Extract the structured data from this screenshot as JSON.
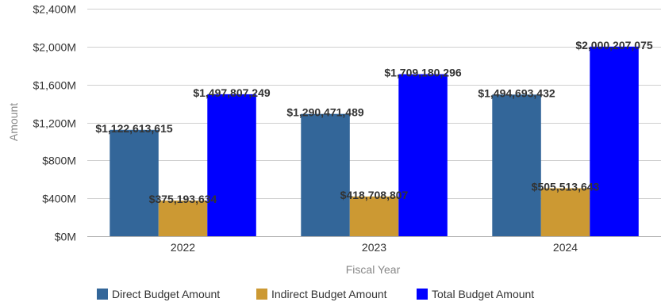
{
  "chart_data": {
    "type": "bar",
    "xlabel": "Fiscal Year",
    "ylabel": "Amount",
    "categories": [
      "2022",
      "2023",
      "2024"
    ],
    "ylim": [
      0,
      2400000000
    ],
    "yticks": [
      "$0M",
      "$400M",
      "$800M",
      "$1,200M",
      "$1,600M",
      "$2,000M",
      "$2,400M"
    ],
    "grid": true,
    "legend_position": "bottom",
    "series": [
      {
        "name": "Direct Budget Amount",
        "color": "#336699",
        "values": [
          1122613615,
          1290471489,
          1494693432
        ],
        "labels": [
          "$1,122,613,615",
          "$1,290,471,489",
          "$1,494,693,432"
        ]
      },
      {
        "name": "Indirect Budget Amount",
        "color": "#CC9933",
        "values": [
          375193634,
          418708807,
          505513643
        ],
        "labels": [
          "$375,193,634",
          "$418,708,807",
          "$505,513,643"
        ]
      },
      {
        "name": "Total Budget Amount",
        "color": "#0000FF",
        "values": [
          1497807249,
          1709180296,
          2000207075
        ],
        "labels": [
          "$1,497,807,249",
          "$1,709,180,296",
          "$2,000,207,075"
        ]
      }
    ]
  }
}
